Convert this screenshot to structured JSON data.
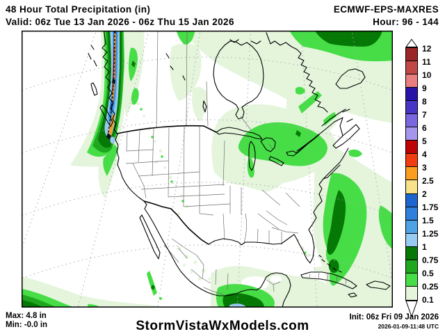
{
  "header": {
    "title": "48 Hour Total Precipitation (in)",
    "model": "ECMWF-EPS-MAXRES",
    "valid": "Valid: 06z Tue 13 Jan 2026 - 06z Thu 15 Jan 2026",
    "hour": "Hour: 96 - 144"
  },
  "footer": {
    "max": "Max: 4.8 in",
    "min": "Min: -0.0 in",
    "watermark": "StormVistaWxModels.com",
    "init": "Init: 06z Fri 09 Jan 2026",
    "generated": "2026-01-09-11:48 UTC"
  },
  "colorbar": {
    "unit": "in",
    "tick_labels": [
      "12",
      "11",
      "10",
      "9",
      "8",
      "7",
      "6",
      "5",
      "4",
      "3",
      "2.5",
      "2",
      "1.75",
      "1.5",
      "1.25",
      "1",
      "0.75",
      "0.5",
      "0.25",
      "0.1"
    ],
    "cell_colors_top_to_bottom": [
      "#9B2626",
      "#C24848",
      "#E87E7E",
      "#2814A6",
      "#4736C6",
      "#7A66DE",
      "#A695EC",
      "#BE0404",
      "#F23D12",
      "#FB9D20",
      "#F8E189",
      "#1C64CE",
      "#2E80DC",
      "#4FA2E4",
      "#97CBF2",
      "#067806",
      "#1FA81F",
      "#47DD47",
      "#E4F5DC"
    ]
  },
  "map": {
    "region": "North America",
    "palette": {
      "pale_green_0.1": "#E4F5DC",
      "bright_green_0.25": "#47DD47",
      "green_0.5": "#1FA81F",
      "dark_green_0.75": "#067806",
      "light_blue_1": "#97CBF2",
      "mid_blue_1.25": "#4FA2E4",
      "royal_blue_1.75": "#1C64CE",
      "orange_2.5": "#FB9D20",
      "red_4": "#BE0404",
      "graticule": "#A8A8A8",
      "state_border": "#6E6E6E",
      "coast": "#000000"
    }
  }
}
